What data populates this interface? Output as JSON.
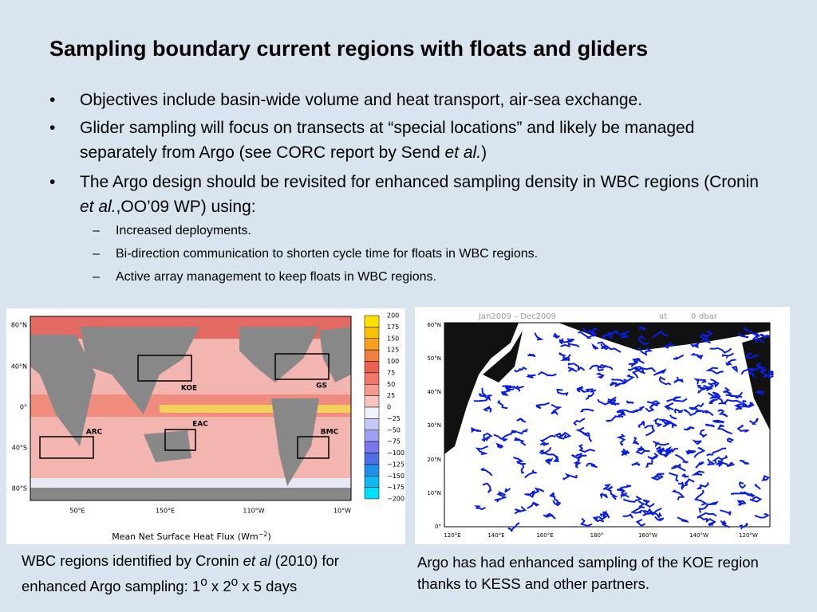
{
  "title": "Sampling boundary current regions with floats and gliders",
  "bullets": [
    [
      "Objectives include basin-wide volume and heat transport, air-sea exchange."
    ],
    [
      "Glider sampling will focus on transects at “special locations” and likely be managed separately from Argo (see CORC report by Send ",
      "et al.",
      ")"
    ],
    [
      "The Argo design should be revisited for enhanced sampling density in WBC regions (Cronin ",
      "et al.",
      ",OO’09 WP) using:"
    ]
  ],
  "sub_bullets": [
    "Increased deployments.",
    "Bi-direction communication to shorten cycle time for floats in WBC regions.",
    "Active array management to keep floats in WBC regions."
  ],
  "left_figure": {
    "lat_labels": [
      "80°N",
      "40°N",
      "0°",
      "40°S",
      "80°S"
    ],
    "lon_labels": [
      "50°E",
      "150°E",
      "110°W",
      "10°W"
    ],
    "regions": [
      "KOE",
      "GS",
      "EAC",
      "ARC",
      "BMC"
    ],
    "colorbar_labels": [
      "200",
      "175",
      "150",
      "125",
      "100",
      "75",
      "50",
      "25",
      "0",
      "−25",
      "−50",
      "−75",
      "−100",
      "−125",
      "−150",
      "−175",
      "−200"
    ],
    "axis_title": [
      "Mean Net Surface Heat Flux (Wm",
      "−2",
      ")"
    ]
  },
  "right_figure": {
    "header": [
      "Jan2009 – Dec2009",
      "at",
      "0",
      "dbar"
    ],
    "lat_labels": [
      "60°N",
      "50°N",
      "40°N",
      "30°N",
      "20°N",
      "10°N",
      "0°"
    ],
    "lon_labels": [
      "120°E",
      "140°E",
      "160°E",
      "180°",
      "160°W",
      "140°W",
      "120°W"
    ]
  },
  "captions": {
    "left": [
      "WBC regions identified by Cronin ",
      "et al",
      " (2010) for enhanced Argo sampling: 1",
      "o",
      " x 2",
      "o",
      " x 5 days"
    ],
    "right": "Argo has had enhanced sampling of the KOE region thanks to KESS and other partners."
  }
}
